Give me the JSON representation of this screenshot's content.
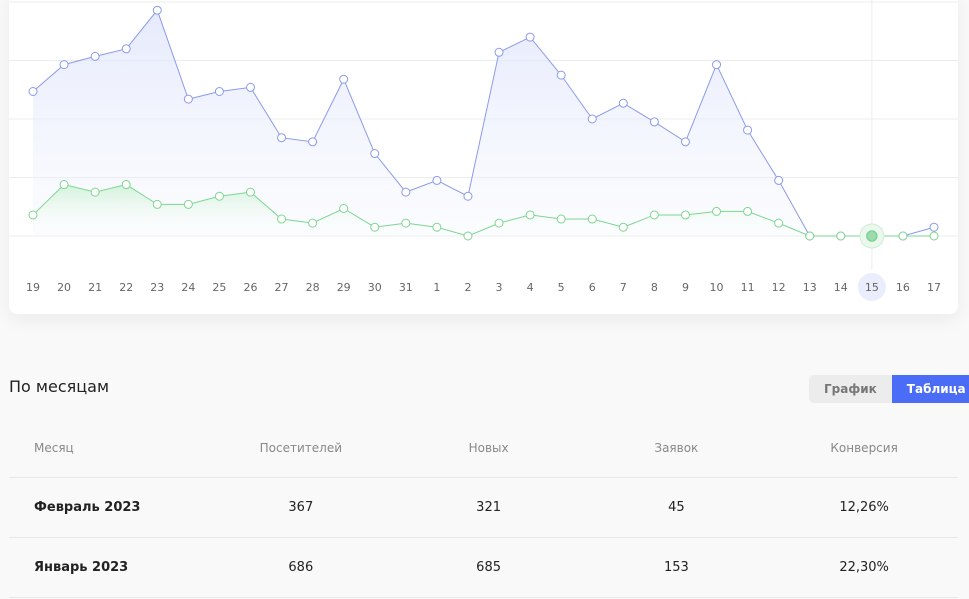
{
  "chart_data": {
    "type": "line",
    "x": [
      "19",
      "20",
      "21",
      "22",
      "23",
      "24",
      "25",
      "26",
      "27",
      "28",
      "29",
      "30",
      "31",
      "1",
      "2",
      "3",
      "4",
      "5",
      "6",
      "7",
      "8",
      "9",
      "10",
      "11",
      "12",
      "13",
      "14",
      "15",
      "16",
      "17"
    ],
    "series": [
      {
        "name": "visitors",
        "color": "#8c9aea",
        "values": [
          24.7,
          29.3,
          30.7,
          32,
          38.6,
          23.4,
          24.7,
          25.4,
          16.8,
          16.1,
          26.8,
          14.1,
          7.5,
          9.5,
          6.8,
          31.4,
          34,
          27.5,
          20,
          22.7,
          19.5,
          16.1,
          29.3,
          18.1,
          9.5,
          0,
          0,
          0,
          0,
          1.5
        ]
      },
      {
        "name": "new",
        "color": "#7dd68f",
        "values": [
          3.6,
          8.8,
          7.5,
          8.8,
          5.4,
          5.4,
          6.8,
          7.5,
          2.9,
          2.2,
          4.7,
          1.5,
          2.2,
          1.5,
          0,
          2.2,
          3.6,
          2.9,
          2.9,
          1.5,
          3.6,
          3.6,
          4.2,
          4.2,
          2.2,
          0,
          0,
          0,
          0,
          0
        ]
      }
    ],
    "ylim": [
      0,
      40
    ],
    "grid": true,
    "highlighted": "15"
  },
  "section_title": "По месяцам",
  "toggle": {
    "chart": "График",
    "table": "Таблица"
  },
  "table": {
    "headers": [
      "Месяц",
      "Посетителей",
      "Новых",
      "Заявок",
      "Конверсия"
    ],
    "rows": [
      [
        "Февраль 2023",
        "367",
        "321",
        "45",
        "12,26%"
      ],
      [
        "Январь 2023",
        "686",
        "685",
        "153",
        "22,30%"
      ]
    ]
  }
}
